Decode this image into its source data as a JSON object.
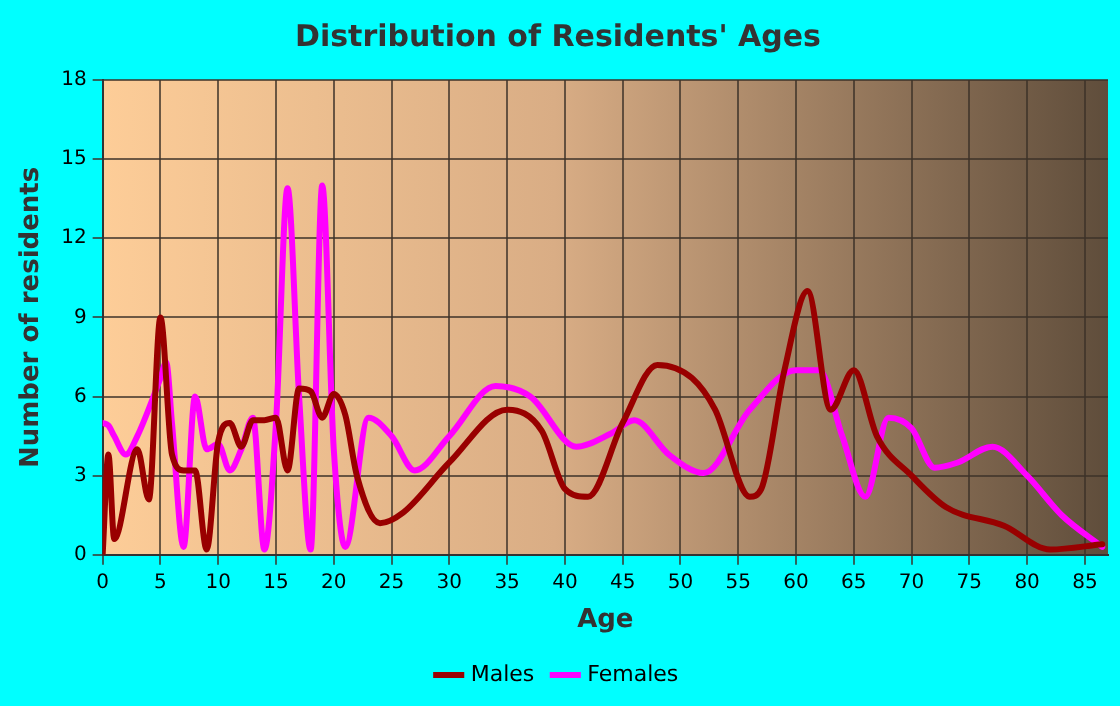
{
  "chart_data": {
    "type": "line",
    "title": "Distribution of Residents' Ages",
    "xlabel": "Age",
    "ylabel": "Number of residents",
    "xlim": [
      0,
      87
    ],
    "xticks": [
      0,
      5,
      10,
      15,
      20,
      25,
      30,
      35,
      40,
      45,
      50,
      55,
      60,
      65,
      70,
      75,
      80,
      85
    ],
    "ylim": [
      0,
      18
    ],
    "yticks": [
      0,
      3,
      6,
      9,
      12,
      15,
      18
    ],
    "grid": true,
    "legend": "bottom",
    "marker": "none",
    "line_style": "solid",
    "series": [
      {
        "name": "Males",
        "color": "#990000",
        "x": [
          0,
          0.5,
          1,
          3,
          4,
          5,
          6,
          7,
          8,
          9,
          10,
          11,
          12,
          13,
          14,
          15,
          16,
          17,
          18,
          19,
          20,
          21,
          22,
          24,
          26,
          30,
          35,
          38,
          40,
          42,
          45,
          48,
          51,
          53,
          56,
          57,
          59,
          61,
          63,
          65,
          67,
          70,
          73,
          78,
          82,
          86.5
        ],
        "values": [
          0,
          3.8,
          0.6,
          4,
          2.1,
          9,
          3.8,
          3.2,
          3.2,
          0.2,
          4.3,
          5,
          4.1,
          5.1,
          5.1,
          5.2,
          3.2,
          6.3,
          6.2,
          5.2,
          6.1,
          5.3,
          3,
          1.2,
          1.6,
          3.5,
          5.5,
          4.7,
          2.5,
          2.2,
          5,
          7.2,
          6.7,
          5.5,
          2.2,
          2.5,
          7,
          10,
          5.5,
          7,
          4.5,
          3,
          1.8,
          1.1,
          0.2,
          0.4
        ]
      },
      {
        "name": "Females",
        "color": "#ff00ff",
        "x": [
          0,
          0.5,
          1,
          2,
          3,
          5,
          5.5,
          6,
          7,
          8,
          9,
          10,
          11,
          12,
          13,
          14,
          15,
          16,
          17,
          18,
          19,
          20,
          21,
          23,
          25,
          27,
          30,
          34,
          37,
          41,
          44,
          46,
          49,
          52,
          56,
          60,
          62,
          64,
          66,
          68,
          70,
          72,
          74,
          77,
          80,
          83,
          86.5
        ],
        "values": [
          5,
          4.9,
          4.5,
          3.8,
          4.5,
          6.7,
          7.3,
          5,
          0.3,
          6,
          4,
          4.2,
          3.2,
          4,
          5.2,
          0.2,
          5,
          13.9,
          6,
          0.2,
          14,
          4,
          0.3,
          5.2,
          4.5,
          3.2,
          4.5,
          6.4,
          6,
          4.1,
          4.6,
          5.1,
          3.8,
          3.1,
          5.5,
          7,
          7,
          4.5,
          2.2,
          5.2,
          4.8,
          3.3,
          3.5,
          4.1,
          3,
          1.5,
          0.3
        ]
      }
    ]
  }
}
